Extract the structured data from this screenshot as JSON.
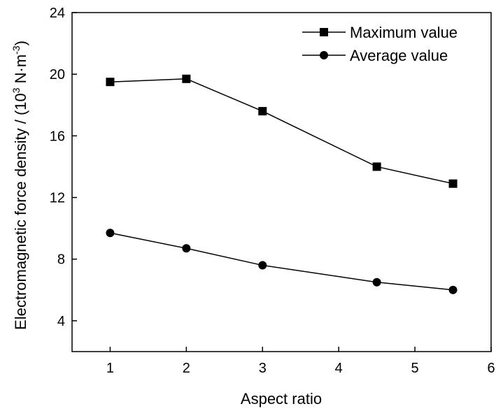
{
  "chart_data": {
    "type": "line",
    "title": "",
    "xlabel": "Aspect ratio",
    "ylabel": "Electromagnetic force density / (10",
    "ylabel_exp": "3",
    "ylabel_unit": " N·m",
    "ylabel_unit_exp": "-3",
    "ylabel_close": ")",
    "xlim": [
      0.5,
      6
    ],
    "ylim": [
      2,
      24
    ],
    "x_ticks": [
      1,
      2,
      3,
      4,
      5,
      6
    ],
    "y_ticks": [
      4,
      8,
      12,
      16,
      20,
      24
    ],
    "x_tick_labels": [
      "1",
      "2",
      "3",
      "4",
      "5",
      "6"
    ],
    "y_tick_labels": [
      "4",
      "8",
      "12",
      "16",
      "20",
      "24"
    ],
    "grid": false,
    "legend_position": "top-right",
    "series": [
      {
        "name": "Maximum value",
        "marker": "square",
        "color": "#000000",
        "points": [
          {
            "x": 1,
            "y": 19.5
          },
          {
            "x": 2,
            "y": 19.7
          },
          {
            "x": 3,
            "y": 17.6
          },
          {
            "x": 4.5,
            "y": 14.0
          },
          {
            "x": 5.5,
            "y": 12.9
          }
        ]
      },
      {
        "name": "Average value",
        "marker": "circle",
        "color": "#000000",
        "points": [
          {
            "x": 1,
            "y": 9.7
          },
          {
            "x": 2,
            "y": 8.7
          },
          {
            "x": 3,
            "y": 7.6
          },
          {
            "x": 4.5,
            "y": 6.5
          },
          {
            "x": 5.5,
            "y": 6.0
          }
        ]
      }
    ]
  }
}
